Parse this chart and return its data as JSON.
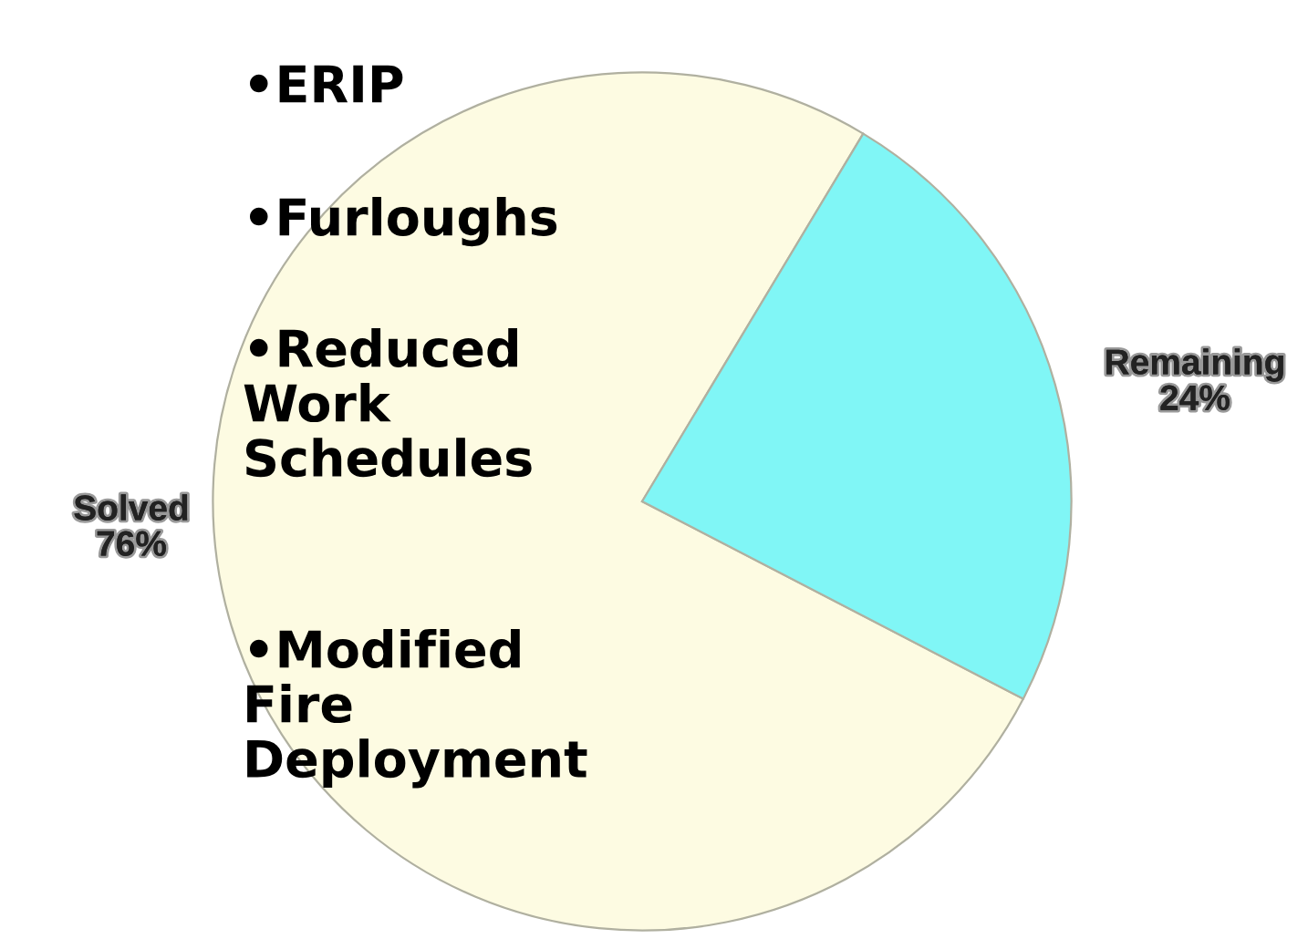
{
  "chart_data": {
    "type": "pie",
    "categories": [
      "Solved",
      "Remaining"
    ],
    "values": [
      76,
      24
    ],
    "value_labels": [
      "76%",
      "24%"
    ],
    "colors": [
      "#fdfbe2",
      "#80f6f6"
    ],
    "annotations": [
      "•ERIP",
      "•Furloughs",
      "•Reduced\nWork\nSchedules",
      "•Modified\nFire\nDeployment"
    ]
  }
}
